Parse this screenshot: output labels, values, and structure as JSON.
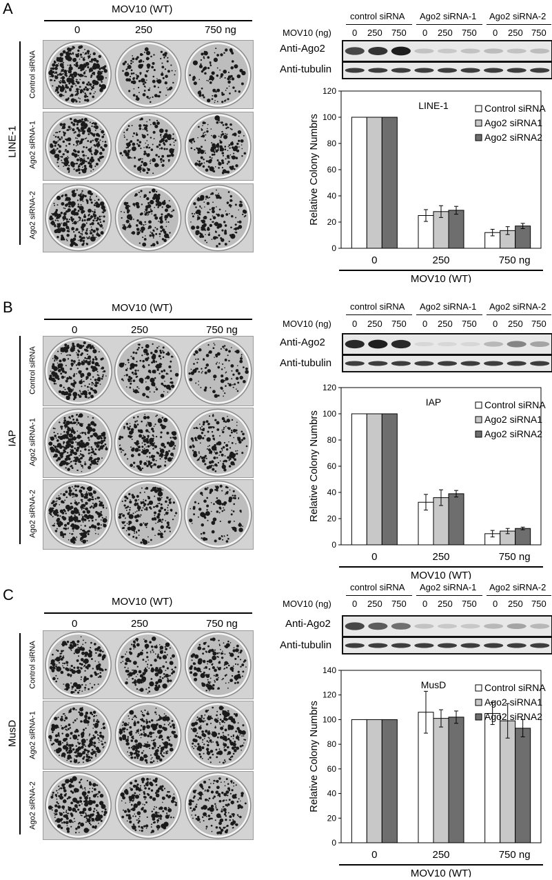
{
  "panels": [
    {
      "letter": "A",
      "element": "LINE-1",
      "plate_title": "MOV10 (WT)",
      "plate_doses": [
        "0",
        "250",
        "750 ng"
      ],
      "row_labels": [
        "Control siRNA",
        "Ago2 siRNA-1",
        "Ago2 siRNA-2"
      ],
      "blot": {
        "groups": [
          "control siRNA",
          "Ago2 siRNA-1",
          "Ago2 siRNA-2"
        ],
        "dose_label": "MOV10 (ng)",
        "lanes": [
          "0",
          "250",
          "750"
        ],
        "rows": [
          "Anti-Ago2",
          "Anti-tubulin"
        ],
        "ago2_band_intensity": [
          0.75,
          0.85,
          0.95,
          0.15,
          0.12,
          0.15,
          0.18,
          0.15,
          0.18
        ]
      },
      "plate_density": [
        [
          1.0,
          0.35,
          0.28
        ],
        [
          0.85,
          0.45,
          0.5
        ],
        [
          0.95,
          0.5,
          0.45
        ]
      ],
      "chart_data": {
        "type": "bar",
        "title": "LINE-1",
        "ylabel": "Relative Colony Numbrs",
        "xlabel": "MOV10 (WT)",
        "categories": [
          "0",
          "250",
          "750 ng"
        ],
        "ylim": [
          0,
          120
        ],
        "yticks": [
          "0",
          "20",
          "40",
          "60",
          "80",
          "100",
          "120"
        ],
        "legend_position": "top-right",
        "series": [
          {
            "name": "Control siRNA",
            "color": "#ffffff",
            "values": [
              100,
              25,
              12
            ],
            "errors": [
              0,
              4.5,
              2.5
            ]
          },
          {
            "name": "Ago2 siRNA1",
            "color": "#c8c8c8",
            "values": [
              100,
              28,
              13.5
            ],
            "errors": [
              0,
              4.5,
              3
            ]
          },
          {
            "name": "Ago2 siRNA2",
            "color": "#6e6e6e",
            "values": [
              100,
              29,
              17
            ],
            "errors": [
              0,
              3,
              2
            ]
          }
        ]
      }
    },
    {
      "letter": "B",
      "element": "IAP",
      "plate_title": "MOV10 (WT)",
      "plate_doses": [
        "0",
        "250",
        "750 ng"
      ],
      "row_labels": [
        "Control siRNA",
        "Ago2 siRNA-1",
        "Ago2 siRNA-2"
      ],
      "blot": {
        "groups": [
          "control siRNA",
          "Ago2 siRNA-1",
          "Ago2 siRNA-2"
        ],
        "dose_label": "MOV10 (ng)",
        "lanes": [
          "0",
          "250",
          "750"
        ],
        "rows": [
          "Anti-Ago2",
          "Anti-tubulin"
        ],
        "ago2_band_intensity": [
          0.9,
          0.95,
          0.9,
          0.05,
          0.05,
          0.05,
          0.2,
          0.45,
          0.3
        ]
      },
      "plate_density": [
        [
          0.8,
          0.45,
          0.3
        ],
        [
          1.0,
          0.6,
          0.5
        ],
        [
          0.9,
          0.55,
          0.3
        ]
      ],
      "chart_data": {
        "type": "bar",
        "title": "IAP",
        "ylabel": "Relative Colony Numbrs",
        "xlabel": "MOV10 (WT)",
        "categories": [
          "0",
          "250",
          "750 ng"
        ],
        "ylim": [
          0,
          120
        ],
        "yticks": [
          "0",
          "20",
          "40",
          "60",
          "80",
          "100",
          "120"
        ],
        "legend_position": "top-right",
        "series": [
          {
            "name": "Control siRNA",
            "color": "#ffffff",
            "values": [
              100,
              32.5,
              8.5
            ],
            "errors": [
              0,
              6,
              2.5
            ]
          },
          {
            "name": "Ago2 siRNA1",
            "color": "#c8c8c8",
            "values": [
              100,
              36,
              10.5
            ],
            "errors": [
              0,
              6,
              2
            ]
          },
          {
            "name": "Ago2 siRNA2",
            "color": "#6e6e6e",
            "values": [
              100,
              39,
              12.5
            ],
            "errors": [
              0,
              2.5,
              1
            ]
          }
        ]
      }
    },
    {
      "letter": "C",
      "element": "MusD",
      "plate_title": "MOV10 (WT)",
      "plate_doses": [
        "0",
        "250",
        "750 ng"
      ],
      "row_labels": [
        "Control siRNA",
        "Ago2 siRNA-1",
        "Ago2 siRNA-2"
      ],
      "blot": {
        "groups": [
          "control siRNA",
          "Ago2 siRNA-1",
          "Ago2 siRNA-2"
        ],
        "dose_label": "MOV10 (ng)",
        "lanes": [
          "0",
          "250",
          "750"
        ],
        "rows": [
          "Anti-Ago2",
          "Anti-tubulin"
        ],
        "ago2_band_intensity": [
          0.75,
          0.65,
          0.55,
          0.15,
          0.12,
          0.12,
          0.2,
          0.3,
          0.2
        ]
      },
      "plate_density": [
        [
          0.55,
          0.5,
          0.5
        ],
        [
          0.75,
          0.75,
          0.7
        ],
        [
          0.7,
          0.55,
          0.55
        ]
      ],
      "chart_data": {
        "type": "bar",
        "title": "MusD",
        "ylabel": "Relative Colony Numbrs",
        "xlabel": "MOV10 (WT)",
        "categories": [
          "0",
          "250",
          "750 ng"
        ],
        "ylim": [
          0,
          140
        ],
        "yticks": [
          "0",
          "20",
          "40",
          "60",
          "80",
          "100",
          "120",
          "140"
        ],
        "legend_position": "top-right",
        "series": [
          {
            "name": "Control siRNA",
            "color": "#ffffff",
            "values": [
              100,
              106,
              105
            ],
            "errors": [
              0,
              17,
              9
            ]
          },
          {
            "name": "Ago2 siRNA1",
            "color": "#c8c8c8",
            "values": [
              100,
              101,
              99
            ],
            "errors": [
              0,
              7,
              14
            ]
          },
          {
            "name": "Ago2 siRNA2",
            "color": "#6e6e6e",
            "values": [
              100,
              102,
              93
            ],
            "errors": [
              0,
              5,
              7
            ]
          }
        ]
      }
    }
  ]
}
